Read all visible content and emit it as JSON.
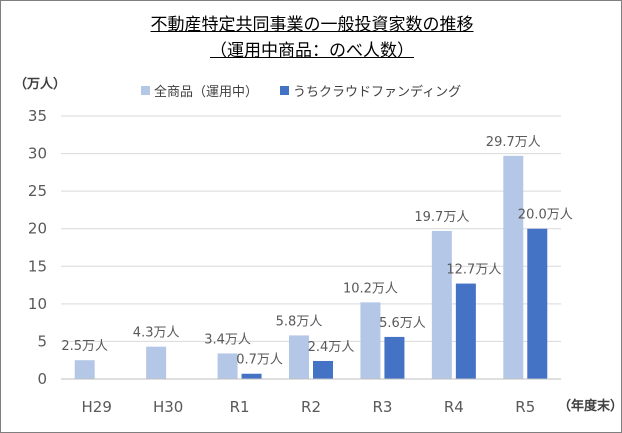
{
  "title_line1": "不動産特定共同事業の一般投資家数の推移",
  "title_line2": "（運用中商品：のべ人数）",
  "y_unit": "（万人）",
  "x_unit": "（年度末）",
  "legend": [
    {
      "name": "全商品（運用中）",
      "color": "#b4c7e7"
    },
    {
      "name": "うちクラウドファンディング",
      "color": "#4472c4"
    }
  ],
  "chart_data": {
    "type": "bar",
    "categories": [
      "H29",
      "H30",
      "R1",
      "R2",
      "R3",
      "R4",
      "R5"
    ],
    "series": [
      {
        "name": "全商品（運用中）",
        "values": [
          2.5,
          4.3,
          3.4,
          5.8,
          10.2,
          19.7,
          29.7
        ],
        "labels": [
          "2.5万人",
          "4.3万人",
          "3.4万人",
          "5.8万人",
          "10.2万人",
          "19.7万人",
          "29.7万人"
        ],
        "color": "#b4c7e7"
      },
      {
        "name": "うちクラウドファンディング",
        "values": [
          null,
          null,
          0.7,
          2.4,
          5.6,
          12.7,
          20.0
        ],
        "labels": [
          "",
          "",
          "0.7万人",
          "2.4万人",
          "5.6万人",
          "12.7万人",
          "20.0万人"
        ],
        "color": "#4472c4"
      }
    ],
    "ylim": [
      0,
      35
    ],
    "yticks": [
      0,
      5,
      10,
      15,
      20,
      25,
      30,
      35
    ],
    "grid": true
  }
}
